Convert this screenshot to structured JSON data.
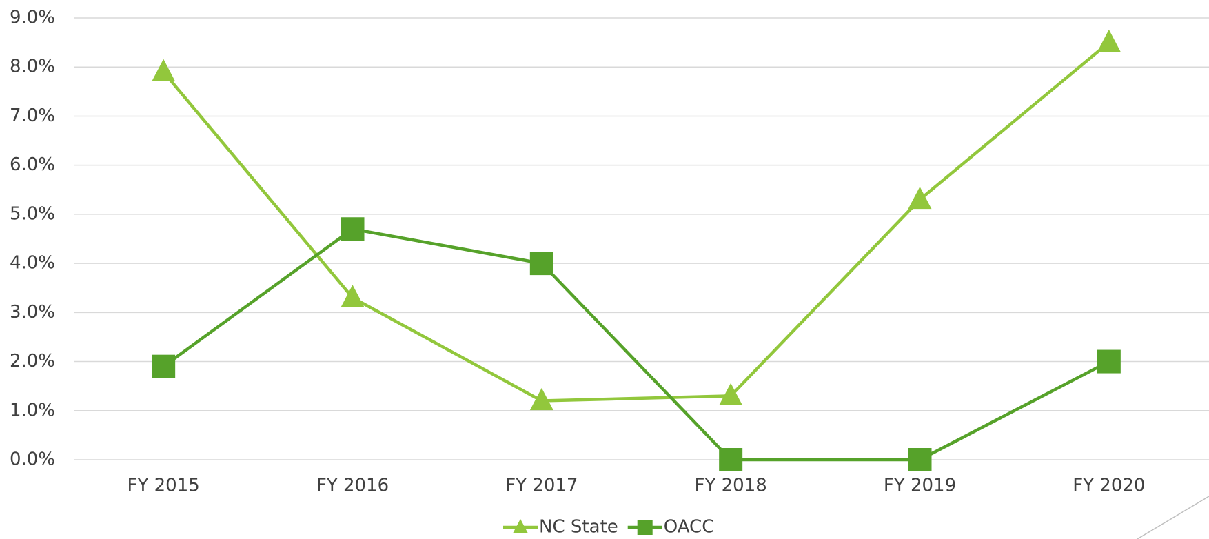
{
  "chart_data": {
    "type": "line",
    "categories": [
      "FY 2015",
      "FY 2016",
      "FY 2017",
      "FY 2018",
      "FY 2019",
      "FY 2020"
    ],
    "series": [
      {
        "name": "NC State",
        "color": "#92c73c",
        "marker": "triangle",
        "values": [
          7.9,
          3.3,
          1.2,
          1.3,
          5.3,
          8.5
        ]
      },
      {
        "name": "OACC",
        "color": "#56a22a",
        "marker": "square",
        "values": [
          1.9,
          4.7,
          4.0,
          0.0,
          0.0,
          2.0
        ]
      }
    ],
    "ylim": [
      0,
      9
    ],
    "yticks": [
      {
        "value": 0,
        "label": "0.0%"
      },
      {
        "value": 1,
        "label": "1.0%"
      },
      {
        "value": 2,
        "label": "2.0%"
      },
      {
        "value": 3,
        "label": "3.0%"
      },
      {
        "value": 4,
        "label": "4.0%"
      },
      {
        "value": 5,
        "label": "5.0%"
      },
      {
        "value": 6,
        "label": "6.0%"
      },
      {
        "value": 7,
        "label": "7.0%"
      },
      {
        "value": 8,
        "label": "8.0%"
      },
      {
        "value": 9,
        "label": "9.0%"
      }
    ],
    "grid": true,
    "legend": "bottom"
  }
}
